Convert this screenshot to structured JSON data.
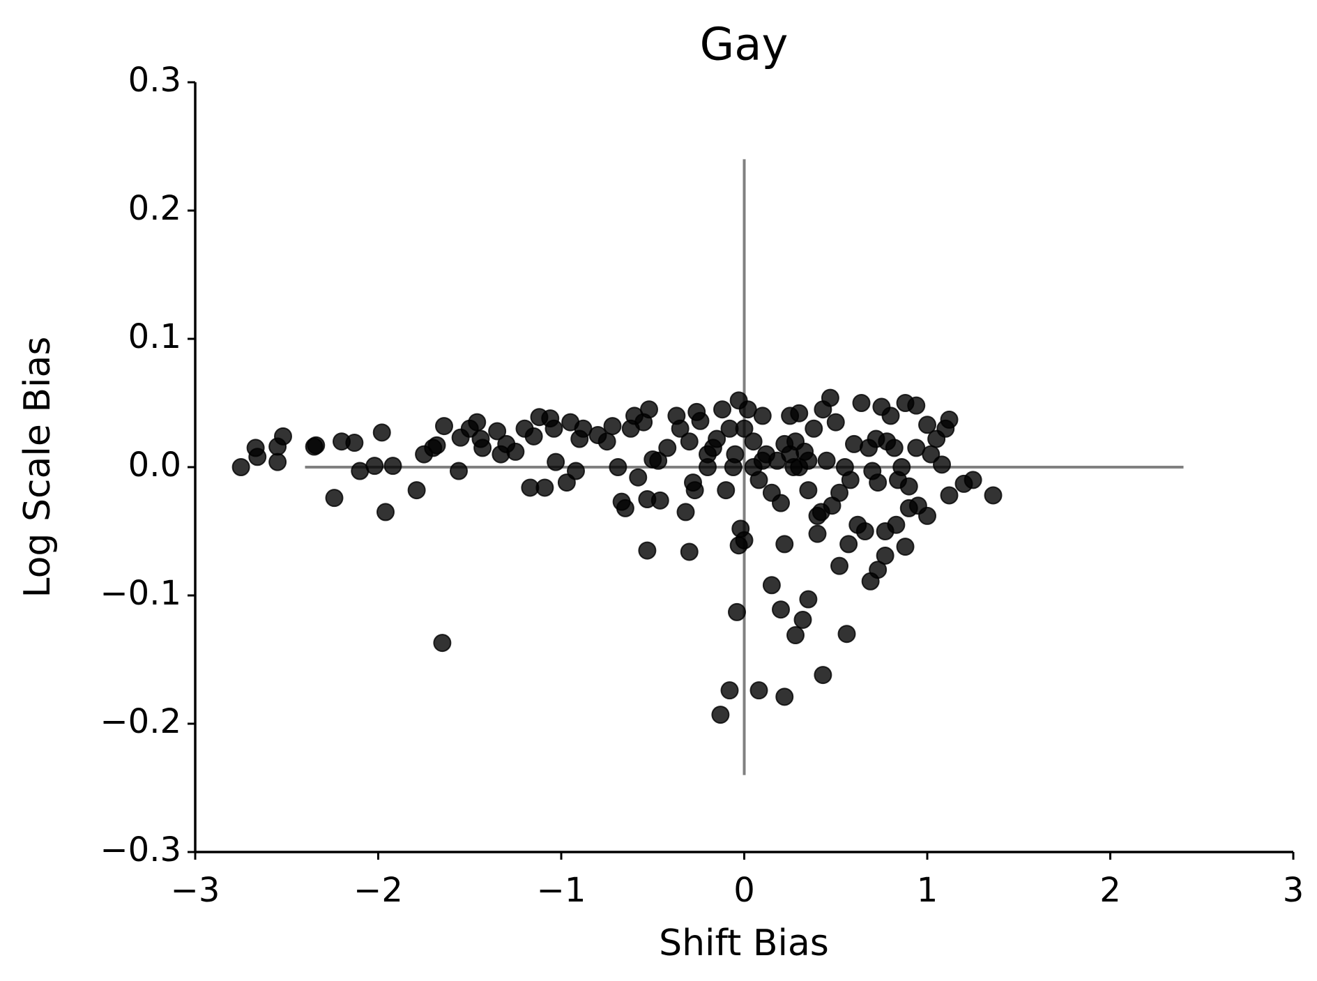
{
  "chart_data": {
    "type": "scatter",
    "title": "Gay",
    "x_label": "Shift Bias",
    "y_label": "Log Scale Bias",
    "color": "#000000",
    "alpha": 0.8,
    "xlim": [
      -3,
      3
    ],
    "ylim": [
      -0.3,
      0.3
    ],
    "xticks": [
      {
        "value": -3,
        "label": "−3"
      },
      {
        "value": -2,
        "label": "−2"
      },
      {
        "value": -1,
        "label": "−1"
      },
      0,
      1,
      2,
      3
    ],
    "yticks": [
      {
        "value": -0.3,
        "label": "−0.3"
      },
      {
        "value": -0.2,
        "label": "−0.2"
      },
      {
        "value": -0.1,
        "label": "−0.1"
      },
      {
        "value": 0,
        "label": "0.0"
      },
      0.1,
      0.2,
      0.3
    ],
    "reference_lines": [
      {
        "x": [
          0,
          0
        ],
        "y": [
          -0.24,
          0.24
        ]
      },
      {
        "x": [
          -2.4,
          2.4
        ],
        "y": [
          0,
          0
        ]
      }
    ],
    "reference_color": "#808080",
    "x": [
      -2.75,
      -2.67,
      -2.66,
      -2.55,
      -2.55,
      -2.52,
      -2.35,
      -2.34,
      -2.24,
      -2.2,
      -2.13,
      -2.1,
      -2.02,
      -1.98,
      -1.96,
      -1.92,
      -1.79,
      -1.75,
      -1.7,
      -1.68,
      -1.64,
      -1.65,
      -1.56,
      -1.55,
      -1.5,
      -1.46,
      -1.44,
      -1.43,
      -1.35,
      -1.33,
      -1.3,
      -1.25,
      -1.2,
      -1.17,
      -1.15,
      -1.12,
      -1.09,
      -1.06,
      -1.04,
      -1.03,
      -0.97,
      -0.95,
      -0.92,
      -0.9,
      -0.88,
      -0.8,
      -0.75,
      -0.72,
      -0.69,
      -0.67,
      -0.65,
      -0.62,
      -0.6,
      -0.58,
      -0.55,
      -0.53,
      -0.52,
      -0.53,
      -0.5,
      -0.47,
      -0.46,
      -0.42,
      -0.37,
      -0.35,
      -0.32,
      -0.3,
      -0.3,
      -0.28,
      -0.27,
      -0.26,
      -0.24,
      -0.2,
      -0.17,
      -0.15,
      -0.12,
      -0.1,
      -0.08,
      -0.06,
      -0.03,
      -0.02,
      -0.03,
      0.0,
      -0.04,
      -0.08,
      -0.13,
      0.08,
      0.22,
      0.15,
      0.2,
      0.22,
      0.28,
      0.32,
      0.35,
      0.43,
      0.56,
      0.52,
      0.57,
      0.69,
      0.73,
      0.77,
      0.77,
      0.83,
      0.88,
      0.9,
      0.95,
      1.0,
      1.12,
      1.2,
      1.25,
      1.36,
      0.02,
      0.05,
      0.08,
      0.1,
      0.12,
      0.15,
      0.18,
      0.2,
      0.22,
      0.25,
      0.27,
      0.3,
      0.33,
      0.35,
      0.38,
      0.4,
      0.4,
      0.42,
      0.43,
      0.45,
      0.47,
      0.48,
      0.5,
      0.52,
      0.55,
      0.58,
      0.6,
      0.62,
      0.64,
      0.66,
      0.68,
      0.7,
      0.72,
      0.73,
      0.75,
      0.78,
      0.8,
      0.82,
      0.84,
      0.86,
      0.88,
      0.9,
      0.94,
      0.94,
      1.0,
      1.02,
      1.05,
      1.08,
      1.1,
      1.12,
      -0.05,
      0.0,
      0.05,
      0.1,
      0.25,
      0.28,
      -0.2,
      0.3,
      0.35
    ],
    "y": [
      0.0,
      0.015,
      0.008,
      0.004,
      0.016,
      0.024,
      0.016,
      0.017,
      -0.024,
      0.02,
      0.019,
      -0.003,
      0.001,
      0.027,
      -0.035,
      0.001,
      -0.018,
      0.01,
      0.015,
      0.017,
      0.032,
      -0.137,
      -0.003,
      0.023,
      0.03,
      0.035,
      0.022,
      0.015,
      0.028,
      0.01,
      0.018,
      0.012,
      0.03,
      -0.016,
      0.024,
      0.039,
      -0.016,
      0.038,
      0.03,
      0.004,
      -0.012,
      0.035,
      -0.003,
      0.022,
      0.03,
      0.025,
      0.02,
      0.032,
      0.0,
      -0.027,
      -0.032,
      0.03,
      0.04,
      -0.008,
      0.035,
      -0.025,
      0.045,
      -0.065,
      0.006,
      0.005,
      -0.026,
      0.015,
      0.04,
      0.03,
      -0.035,
      -0.066,
      0.02,
      -0.012,
      -0.018,
      0.043,
      0.036,
      0.01,
      0.015,
      0.022,
      0.045,
      -0.018,
      0.03,
      0.0,
      0.052,
      -0.048,
      -0.061,
      -0.057,
      -0.113,
      -0.174,
      -0.193,
      -0.174,
      -0.179,
      -0.092,
      -0.111,
      -0.06,
      -0.131,
      -0.119,
      -0.103,
      -0.162,
      -0.13,
      -0.077,
      -0.06,
      -0.089,
      -0.08,
      -0.069,
      -0.05,
      -0.045,
      -0.062,
      -0.032,
      -0.03,
      -0.038,
      -0.022,
      -0.013,
      -0.01,
      -0.022,
      0.045,
      0.02,
      -0.01,
      0.04,
      0.01,
      -0.02,
      0.005,
      -0.028,
      0.018,
      0.04,
      0.0,
      0.042,
      0.012,
      -0.018,
      0.03,
      -0.038,
      -0.052,
      -0.035,
      0.045,
      0.005,
      0.054,
      -0.03,
      0.035,
      -0.02,
      0.0,
      -0.01,
      0.018,
      -0.045,
      0.05,
      -0.05,
      0.015,
      -0.003,
      0.022,
      -0.012,
      0.047,
      0.02,
      0.04,
      0.015,
      -0.01,
      0.0,
      0.05,
      -0.015,
      0.048,
      0.015,
      0.033,
      0.01,
      0.022,
      0.002,
      0.03,
      0.037,
      0.01,
      0.03,
      0.0,
      0.005,
      0.01,
      0.02,
      0.0,
      0.0,
      0.005
    ]
  }
}
